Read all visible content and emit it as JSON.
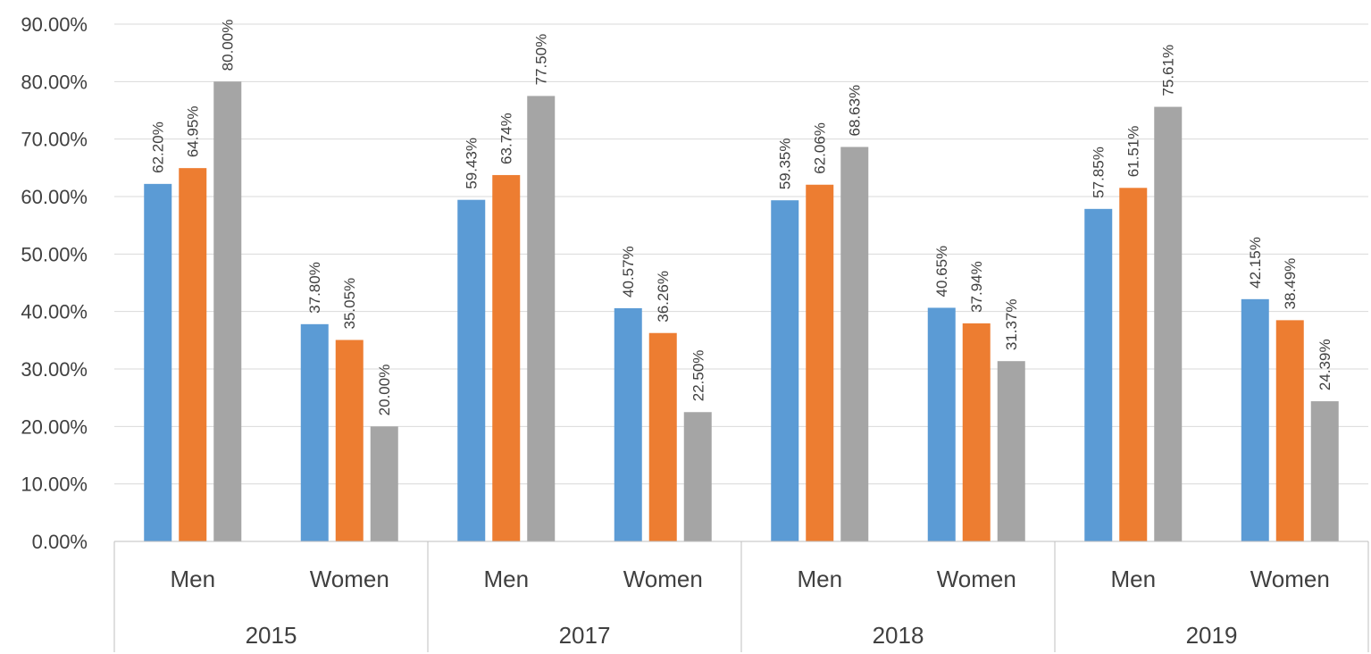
{
  "chart_data": {
    "type": "bar",
    "groups": [
      {
        "label": "2015",
        "categories": [
          "Men",
          "Women"
        ]
      },
      {
        "label": "2017",
        "categories": [
          "Men",
          "Women"
        ]
      },
      {
        "label": "2018",
        "categories": [
          "Men",
          "Women"
        ]
      },
      {
        "label": "2019",
        "categories": [
          "Men",
          "Women"
        ]
      }
    ],
    "series": [
      {
        "color": "#5b9bd5",
        "values": [
          62.2,
          37.8,
          59.43,
          40.57,
          59.35,
          40.65,
          57.85,
          42.15
        ]
      },
      {
        "color": "#ed7d31",
        "values": [
          64.95,
          35.05,
          63.74,
          36.26,
          62.06,
          37.94,
          61.51,
          38.49
        ]
      },
      {
        "color": "#a5a5a5",
        "values": [
          80.0,
          20.0,
          77.5,
          22.5,
          68.63,
          31.37,
          75.61,
          24.39
        ]
      }
    ],
    "y_ticks": [
      "0.00%",
      "10.00%",
      "20.00%",
      "30.00%",
      "40.00%",
      "50.00%",
      "60.00%",
      "70.00%",
      "80.00%",
      "90.00%"
    ],
    "ylim": [
      0,
      90
    ],
    "grid": true,
    "legend": "none",
    "value_format": "percent-2dp"
  }
}
